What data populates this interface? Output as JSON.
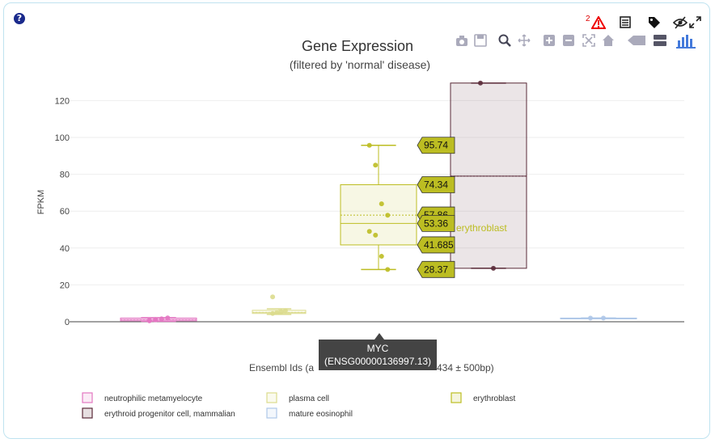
{
  "help_label": "?",
  "warnings_count": "2",
  "chart_data": {
    "type": "box",
    "title": "Gene Expression",
    "subtitle": "(filtered by 'normal' disease)",
    "ylabel": "FPKM",
    "xlabel": "Ensembl Ids (a",
    "xlabel_suffix": "434 ± 500bp)",
    "ylim": [
      0,
      130
    ],
    "yticks": [
      0,
      20,
      40,
      60,
      80,
      100,
      120
    ],
    "series": [
      {
        "name": "neutrophilic metamyelocyte",
        "color": "#e377c2",
        "q1": 0.5,
        "median": 1.2,
        "q3": 2,
        "min": 0.2,
        "max": 2.2,
        "mean": 1.1,
        "points": [
          0.8,
          1.2,
          1.6,
          2.1,
          0.5,
          1.0
        ]
      },
      {
        "name": "plasma cell",
        "color": "#dbdb8d",
        "q1": 4.5,
        "median": 5,
        "q3": 6.2,
        "min": 4,
        "max": 7,
        "mean": 5.1,
        "points": [
          4.5,
          5,
          5.5,
          6,
          13.5
        ]
      },
      {
        "name": "erythroblast",
        "color": "#bcbd22",
        "q1": 41.685,
        "median": 53.36,
        "q3": 74.34,
        "min": 28.37,
        "max": 95.74,
        "mean": 57.86,
        "points": [
          95.74,
          85,
          64,
          57.8,
          49,
          47,
          35.5,
          28.37
        ]
      },
      {
        "name": "erythroid progenitor cell, mammalian",
        "color": "#5a2a38",
        "q1": 29,
        "median": 79,
        "q3": 129.5,
        "min": 29,
        "max": 129.5,
        "mean": 79,
        "points": [
          129.5,
          29
        ]
      },
      {
        "name": "mature eosinophil",
        "color": "#aec7e8",
        "q1": 2,
        "median": 2,
        "q3": 2,
        "min": 2,
        "max": 2,
        "mean": 2,
        "points": [
          2,
          2
        ]
      }
    ],
    "stat_labels": [
      "95.74",
      "74.34",
      "57.86",
      "53.36",
      "41.685",
      "28.37"
    ],
    "hover_name": "erythroblast",
    "tooltip": {
      "line1": "MYC",
      "line2": "(ENSG00000136997.13)"
    },
    "legend": {
      "placement": "bottom",
      "items": [
        {
          "name": "neutrophilic metamyelocyte",
          "color": "#e377c2"
        },
        {
          "name": "plasma cell",
          "color": "#dbdb8d"
        },
        {
          "name": "erythroblast",
          "color": "#bcbd22"
        },
        {
          "name": "erythroid progenitor cell, mammalian",
          "color": "#5a2a38"
        },
        {
          "name": "mature eosinophil",
          "color": "#aec7e8"
        }
      ]
    },
    "grid": true
  }
}
